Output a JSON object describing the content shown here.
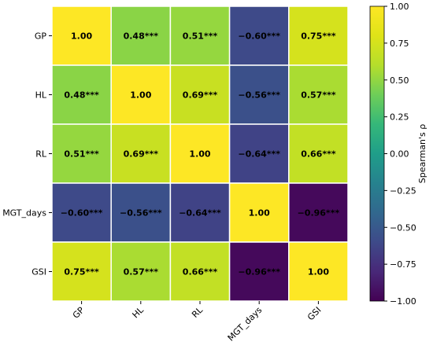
{
  "chart_data": {
    "type": "heatmap",
    "title": "",
    "variables": [
      "GP",
      "HL",
      "RL",
      "MGT_days",
      "GSI"
    ],
    "values": [
      [
        1.0,
        0.48,
        0.51,
        -0.6,
        0.75
      ],
      [
        0.48,
        1.0,
        0.69,
        -0.56,
        0.57
      ],
      [
        0.51,
        0.69,
        1.0,
        -0.64,
        0.66
      ],
      [
        -0.6,
        -0.56,
        -0.64,
        1.0,
        -0.96
      ],
      [
        0.75,
        0.57,
        0.66,
        -0.96,
        1.0
      ]
    ],
    "cell_labels": [
      [
        "1.00",
        "0.48***",
        "0.51***",
        "−0.60***",
        "0.75***"
      ],
      [
        "0.48***",
        "1.00",
        "0.69***",
        "−0.56***",
        "0.57***"
      ],
      [
        "0.51***",
        "0.69***",
        "1.00",
        "−0.64***",
        "0.66***"
      ],
      [
        "−0.60***",
        "−0.56***",
        "−0.64***",
        "1.00",
        "−0.96***"
      ],
      [
        "0.75***",
        "0.57***",
        "0.66***",
        "−0.96***",
        "1.00"
      ]
    ],
    "colormap": "viridis",
    "vmin": -1.0,
    "vmax": 1.0,
    "colorbar": {
      "label": "Spearman's ρ",
      "ticks": [
        1.0,
        0.75,
        0.5,
        0.25,
        0.0,
        -0.25,
        -0.5,
        -0.75,
        -1.0
      ],
      "tick_labels": [
        "1.00",
        "0.75",
        "0.50",
        "0.25",
        "0.00",
        "−0.25",
        "−0.50",
        "−0.75",
        "−1.00"
      ]
    },
    "x_tick_rotation": "45",
    "grid": "white cell borders"
  }
}
